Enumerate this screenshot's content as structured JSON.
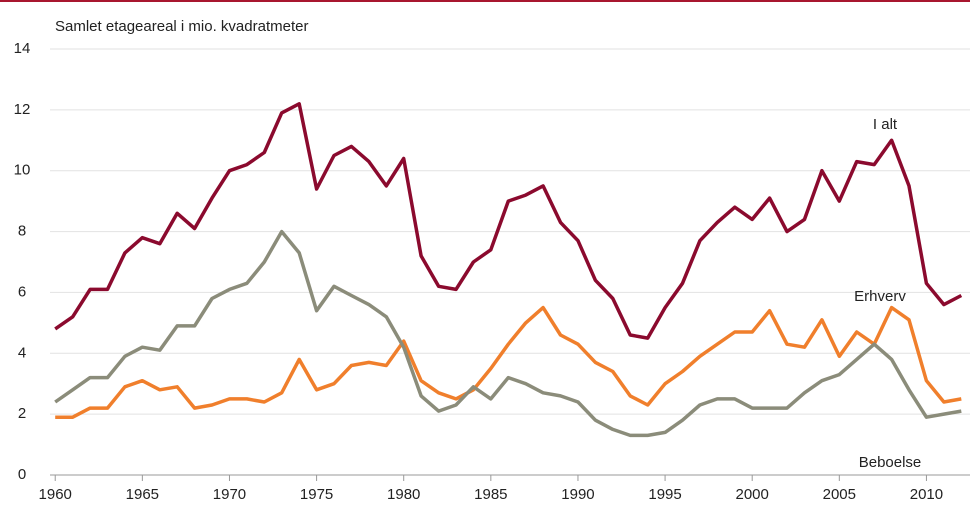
{
  "chart_data": {
    "type": "line",
    "title": "Samlet etageareal i mio. kvadratmeter",
    "x": [
      1960,
      1961,
      1962,
      1963,
      1964,
      1965,
      1966,
      1967,
      1968,
      1969,
      1970,
      1971,
      1972,
      1973,
      1974,
      1975,
      1976,
      1977,
      1978,
      1979,
      1980,
      1981,
      1982,
      1983,
      1984,
      1985,
      1986,
      1987,
      1988,
      1989,
      1990,
      1991,
      1992,
      1993,
      1994,
      1995,
      1996,
      1997,
      1998,
      1999,
      2000,
      2001,
      2002,
      2003,
      2004,
      2005,
      2006,
      2007,
      2008,
      2009,
      2010,
      2011,
      2012
    ],
    "series": [
      {
        "name": "I alt",
        "color": "#8b0a2e",
        "values": [
          4.8,
          5.2,
          6.1,
          6.1,
          7.3,
          7.8,
          7.6,
          8.6,
          8.1,
          9.1,
          10.0,
          10.2,
          10.6,
          11.9,
          12.2,
          9.4,
          10.5,
          10.8,
          10.3,
          9.5,
          10.4,
          7.2,
          6.2,
          6.1,
          7.0,
          7.4,
          9.0,
          9.2,
          9.5,
          8.3,
          7.7,
          6.4,
          5.8,
          4.6,
          4.5,
          5.5,
          6.3,
          7.7,
          8.3,
          8.8,
          8.4,
          9.1,
          8.0,
          8.4,
          10.0,
          9.0,
          10.3,
          10.2,
          11.0,
          9.5,
          6.3,
          5.6,
          5.9
        ]
      },
      {
        "name": "Erhverv",
        "color": "#f07f2c",
        "values": [
          1.9,
          1.9,
          2.2,
          2.2,
          2.9,
          3.1,
          2.8,
          2.9,
          2.2,
          2.3,
          2.5,
          2.5,
          2.4,
          2.7,
          3.8,
          2.8,
          3.0,
          3.6,
          3.7,
          3.6,
          4.4,
          3.1,
          2.7,
          2.5,
          2.8,
          3.5,
          4.3,
          5.0,
          5.5,
          4.6,
          4.3,
          3.7,
          3.4,
          2.6,
          2.3,
          3.0,
          3.4,
          3.9,
          4.3,
          4.7,
          4.7,
          5.4,
          4.3,
          4.2,
          5.1,
          3.9,
          4.7,
          4.3,
          5.5,
          5.1,
          3.1,
          2.4,
          2.5
        ]
      },
      {
        "name": "Beboelse",
        "color": "#8b8c7a",
        "values": [
          2.4,
          2.8,
          3.2,
          3.2,
          3.9,
          4.2,
          4.1,
          4.9,
          4.9,
          5.8,
          6.1,
          6.3,
          7.0,
          8.0,
          7.3,
          5.4,
          6.2,
          5.9,
          5.6,
          5.2,
          4.2,
          2.6,
          2.1,
          2.3,
          2.9,
          2.5,
          3.2,
          3.0,
          2.7,
          2.6,
          2.4,
          1.8,
          1.5,
          1.3,
          1.3,
          1.4,
          1.8,
          2.3,
          2.5,
          2.5,
          2.2,
          2.2,
          2.2,
          2.7,
          3.1,
          3.3,
          3.8,
          4.3,
          3.8,
          2.8,
          1.9,
          2.0,
          2.1
        ]
      }
    ],
    "xlim": [
      1959.7,
      2012.5
    ],
    "xticks": [
      1960,
      1965,
      1970,
      1975,
      1980,
      1985,
      1990,
      1995,
      2000,
      2005,
      2010
    ],
    "ylim": [
      0,
      14
    ],
    "yticks": [
      0,
      2,
      4,
      6,
      8,
      10,
      12,
      14
    ],
    "grid": true
  }
}
